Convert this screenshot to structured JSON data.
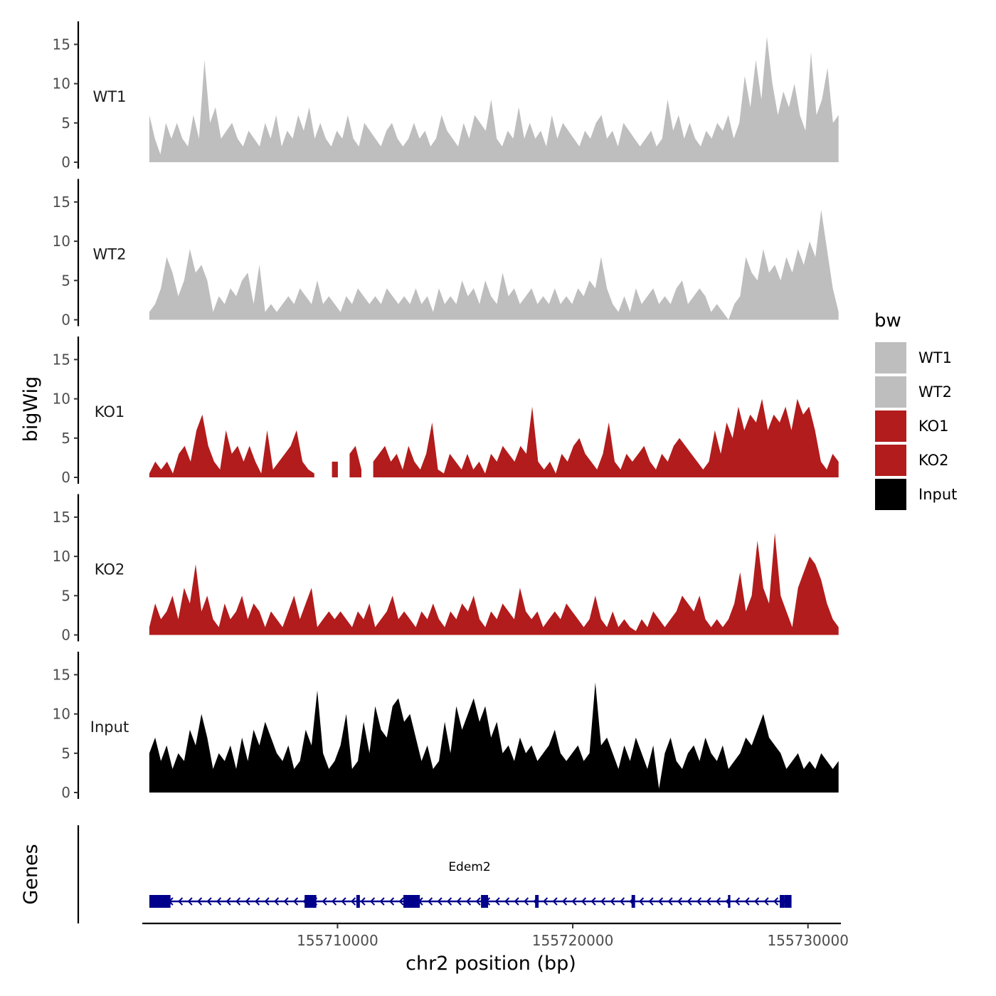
{
  "chart_data": {
    "type": "area",
    "ylabel": "bigWig",
    "xlabel": "chr2 position (bp)",
    "ylim": [
      0,
      17
    ],
    "yticks": [
      "0",
      "5",
      "10",
      "15"
    ],
    "xlim": [
      155701700,
      155731400
    ],
    "xticks": [
      {
        "value": 155710000,
        "label": "155710000"
      },
      {
        "value": 155720000,
        "label": "155720000"
      },
      {
        "value": 155730000,
        "label": "155730000"
      }
    ],
    "genes_label": "Genes",
    "legend": {
      "title": "bw",
      "items": [
        {
          "label": "WT1",
          "color": "#bebebe"
        },
        {
          "label": "WT2",
          "color": "#bebebe"
        },
        {
          "label": "KO1",
          "color": "#b21c1c"
        },
        {
          "label": "KO2",
          "color": "#b21c1c"
        },
        {
          "label": "Input",
          "color": "#000000"
        }
      ]
    },
    "series": [
      {
        "name": "WT1",
        "color": "#bebebe",
        "x_start": 155702000,
        "x_end": 155731300,
        "values": [
          6,
          3,
          1,
          5,
          3,
          5,
          3,
          2,
          6,
          3,
          13,
          5,
          7,
          3,
          4,
          5,
          3,
          2,
          4,
          3,
          2,
          5,
          3,
          6,
          2,
          4,
          3,
          6,
          4,
          7,
          3,
          5,
          3,
          2,
          4,
          3,
          6,
          3,
          2,
          5,
          4,
          3,
          2,
          4,
          5,
          3,
          2,
          3,
          5,
          3,
          4,
          2,
          3,
          6,
          4,
          3,
          2,
          5,
          3,
          6,
          5,
          4,
          8,
          3,
          2,
          4,
          3,
          7,
          3,
          5,
          3,
          4,
          2,
          6,
          3,
          5,
          4,
          3,
          2,
          4,
          3,
          5,
          6,
          3,
          4,
          2,
          5,
          4,
          3,
          2,
          3,
          4,
          2,
          3,
          8,
          4,
          6,
          3,
          5,
          3,
          2,
          4,
          3,
          5,
          4,
          6,
          3,
          5,
          11,
          7,
          13,
          8,
          16,
          10,
          6,
          9,
          7,
          10,
          6,
          4,
          14,
          6,
          8,
          12,
          5,
          6
        ]
      },
      {
        "name": "WT2",
        "color": "#bebebe",
        "x_start": 155702000,
        "x_end": 155731300,
        "values": [
          1,
          2,
          4,
          8,
          6,
          3,
          5,
          9,
          6,
          7,
          5,
          1,
          3,
          2,
          4,
          3,
          5,
          6,
          2,
          7,
          1,
          2,
          1,
          2,
          3,
          2,
          4,
          3,
          2,
          5,
          2,
          3,
          2,
          1,
          3,
          2,
          4,
          3,
          2,
          3,
          2,
          4,
          3,
          2,
          3,
          2,
          4,
          2,
          3,
          1,
          4,
          2,
          3,
          2,
          5,
          3,
          4,
          2,
          5,
          3,
          2,
          6,
          3,
          4,
          2,
          3,
          4,
          2,
          3,
          2,
          4,
          2,
          3,
          2,
          4,
          3,
          5,
          4,
          8,
          4,
          2,
          1,
          3,
          1,
          4,
          2,
          3,
          4,
          2,
          3,
          2,
          4,
          5,
          2,
          3,
          4,
          3,
          1,
          2,
          1,
          0,
          2,
          3,
          8,
          6,
          5,
          9,
          6,
          7,
          5,
          8,
          6,
          9,
          7,
          10,
          8,
          14,
          9,
          4,
          1
        ]
      },
      {
        "name": "KO1",
        "color": "#b21c1c",
        "x_start": 155702000,
        "x_end": 155731300,
        "values": [
          0.5,
          2,
          1,
          2,
          0.5,
          3,
          4,
          2,
          6,
          8,
          4,
          2,
          1,
          6,
          3,
          4,
          2,
          4,
          2,
          0.5,
          6,
          1,
          2,
          3,
          4,
          6,
          2,
          1,
          0.5,
          null,
          null,
          2,
          2,
          null,
          3,
          4,
          1,
          null,
          2,
          3,
          4,
          2,
          3,
          1,
          4,
          2,
          1,
          3,
          7,
          1,
          0.5,
          3,
          2,
          1,
          3,
          1,
          2,
          0.5,
          3,
          2,
          4,
          3,
          2,
          4,
          3,
          9,
          2,
          1,
          2,
          0.5,
          3,
          2,
          4,
          5,
          3,
          2,
          1,
          3,
          7,
          2,
          1,
          3,
          2,
          3,
          4,
          2,
          1,
          3,
          2,
          4,
          5,
          4,
          3,
          2,
          1,
          2,
          6,
          3,
          7,
          5,
          9,
          6,
          8,
          7,
          10,
          6,
          8,
          7,
          9,
          6,
          10,
          8,
          9,
          6,
          2,
          1,
          3,
          2
        ]
      },
      {
        "name": "KO2",
        "color": "#b21c1c",
        "x_start": 155702000,
        "x_end": 155731300,
        "values": [
          1,
          4,
          2,
          3,
          5,
          2,
          6,
          4,
          9,
          3,
          5,
          2,
          1,
          4,
          2,
          3,
          5,
          2,
          4,
          3,
          1,
          3,
          2,
          1,
          3,
          5,
          2,
          4,
          6,
          1,
          2,
          3,
          2,
          3,
          2,
          1,
          3,
          2,
          4,
          1,
          2,
          3,
          5,
          2,
          3,
          2,
          1,
          3,
          2,
          4,
          2,
          1,
          3,
          2,
          4,
          3,
          5,
          2,
          1,
          3,
          2,
          4,
          3,
          2,
          6,
          3,
          2,
          3,
          1,
          2,
          3,
          2,
          4,
          3,
          2,
          1,
          2,
          5,
          2,
          1,
          3,
          1,
          2,
          1,
          0.5,
          2,
          1,
          3,
          2,
          1,
          2,
          3,
          5,
          4,
          3,
          5,
          2,
          1,
          2,
          1,
          2,
          4,
          8,
          3,
          5,
          12,
          6,
          4,
          13,
          5,
          3,
          1,
          6,
          8,
          10,
          9,
          7,
          4,
          2,
          1
        ]
      },
      {
        "name": "Input",
        "color": "#000000",
        "x_start": 155702000,
        "x_end": 155731300,
        "values": [
          5,
          7,
          4,
          6,
          3,
          5,
          4,
          8,
          6,
          10,
          7,
          3,
          5,
          4,
          6,
          3,
          7,
          4,
          8,
          6,
          9,
          7,
          5,
          4,
          6,
          3,
          4,
          8,
          6,
          13,
          5,
          3,
          4,
          6,
          10,
          3,
          4,
          9,
          5,
          11,
          8,
          7,
          11,
          12,
          9,
          10,
          7,
          4,
          6,
          3,
          4,
          9,
          5,
          11,
          8,
          10,
          12,
          9,
          11,
          7,
          9,
          5,
          6,
          4,
          7,
          5,
          6,
          4,
          5,
          6,
          8,
          5,
          4,
          5,
          6,
          4,
          5,
          14,
          6,
          7,
          5,
          3,
          6,
          4,
          7,
          5,
          3,
          6,
          0.5,
          5,
          7,
          4,
          3,
          5,
          6,
          4,
          7,
          5,
          4,
          6,
          3,
          4,
          5,
          7,
          6,
          8,
          10,
          7,
          6,
          5,
          3,
          4,
          5,
          3,
          4,
          3,
          5,
          4,
          3,
          4
        ]
      }
    ],
    "genes": [
      {
        "name": "Edem2",
        "strand": "-",
        "color": "#00008b",
        "start": 155702000,
        "end": 155729300,
        "exons": [
          [
            155702000,
            155702900
          ],
          [
            155708600,
            155709100
          ],
          [
            155710800,
            155710950
          ],
          [
            155712800,
            155713500
          ],
          [
            155716100,
            155716400
          ],
          [
            155718400,
            155718550
          ],
          [
            155722500,
            155722650
          ],
          [
            155726600,
            155726700
          ],
          [
            155728800,
            155729000
          ],
          [
            155729000,
            155729300
          ]
        ]
      }
    ]
  }
}
